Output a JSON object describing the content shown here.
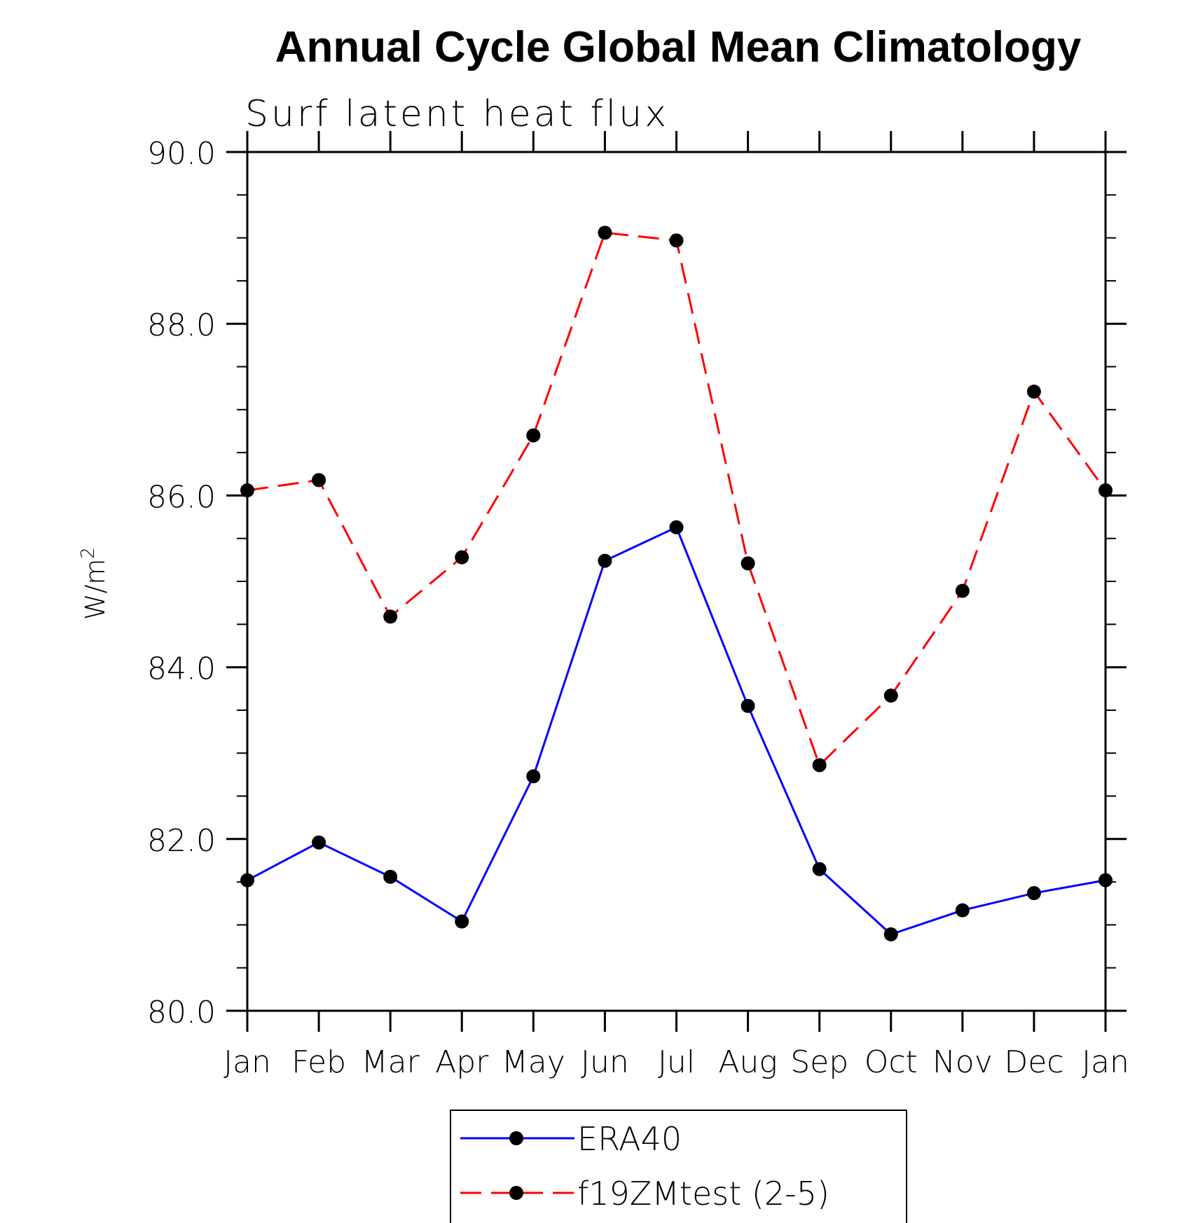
{
  "chart_data": {
    "type": "line",
    "title": "Annual Cycle Global Mean Climatology",
    "subtitle": "Surf latent heat flux",
    "ylabel": "W/m",
    "ylabel_superscript": "2",
    "xlabel": "",
    "categories": [
      "Jan",
      "Feb",
      "Mar",
      "Apr",
      "May",
      "Jun",
      "Jul",
      "Aug",
      "Sep",
      "Oct",
      "Nov",
      "Dec",
      "Jan"
    ],
    "ylim": [
      80.0,
      90.0
    ],
    "yticks": [
      "80.0",
      "82.0",
      "84.0",
      "86.0",
      "88.0",
      "90.0"
    ],
    "grid": false,
    "legend_position": "bottom-center",
    "series": [
      {
        "name": "ERA40",
        "color": "#0000ff",
        "dash": "solid",
        "values": [
          81.52,
          81.96,
          81.56,
          81.04,
          82.73,
          85.24,
          85.63,
          83.55,
          81.65,
          80.89,
          81.17,
          81.37,
          81.52
        ]
      },
      {
        "name": "f19ZMtest (2-5)",
        "color": "#ff0000",
        "dash": "dashed",
        "values": [
          86.06,
          86.18,
          84.59,
          85.28,
          86.7,
          89.06,
          88.97,
          85.21,
          82.86,
          83.67,
          84.89,
          87.21,
          86.06
        ]
      }
    ]
  }
}
